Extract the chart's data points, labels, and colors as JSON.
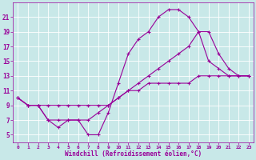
{
  "title": "",
  "xlabel": "Windchill (Refroidissement éolien,°C)",
  "ylabel": "",
  "bg_color": "#c8e8e8",
  "line_color": "#990099",
  "grid_color": "#ffffff",
  "xlim": [
    -0.5,
    23.5
  ],
  "ylim": [
    4,
    23
  ],
  "yticks": [
    5,
    7,
    9,
    11,
    13,
    15,
    17,
    19,
    21
  ],
  "xticks": [
    0,
    1,
    2,
    3,
    4,
    5,
    6,
    7,
    8,
    9,
    10,
    11,
    12,
    13,
    14,
    15,
    16,
    17,
    18,
    19,
    20,
    21,
    22,
    23
  ],
  "curve1_x": [
    0,
    1,
    2,
    3,
    4,
    5,
    6,
    7,
    8,
    9,
    10,
    11,
    12,
    13,
    14,
    15,
    16,
    17,
    18,
    19,
    20,
    21,
    22,
    23
  ],
  "curve1_y": [
    10,
    9,
    9,
    7,
    7,
    7,
    7,
    7,
    8,
    9,
    10,
    11,
    11,
    12,
    12,
    12,
    12,
    12,
    13,
    13,
    13,
    13,
    13,
    13
  ],
  "curve2_x": [
    0,
    1,
    2,
    3,
    4,
    5,
    6,
    7,
    8,
    9,
    10,
    11,
    12,
    13,
    14,
    15,
    16,
    17,
    18,
    19,
    20,
    21,
    22,
    23
  ],
  "curve2_y": [
    10,
    9,
    9,
    9,
    9,
    9,
    9,
    9,
    9,
    9,
    10,
    11,
    12,
    13,
    14,
    15,
    16,
    17,
    19,
    19,
    16,
    14,
    13,
    13
  ],
  "curve3_x": [
    0,
    1,
    2,
    3,
    4,
    5,
    6,
    7,
    8,
    9,
    10,
    11,
    12,
    13,
    14,
    15,
    16,
    17,
    18,
    19,
    20,
    21,
    22,
    23
  ],
  "curve3_y": [
    10,
    9,
    9,
    7,
    6,
    7,
    7,
    5,
    5,
    8,
    12,
    16,
    18,
    19,
    21,
    22,
    22,
    21,
    19,
    15,
    14,
    13,
    13,
    13
  ],
  "xlabel_fontsize": 5.5,
  "tick_labelsize": 5,
  "linewidth": 0.8,
  "markersize": 3
}
